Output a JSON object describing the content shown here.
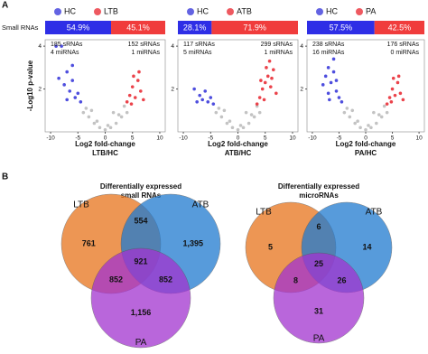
{
  "panels": {
    "a": "A",
    "b": "B"
  },
  "row_label": "Small RNAs",
  "chart_data": [
    {
      "type": "scatter",
      "ylabel": "-Log10 p-value",
      "xlabel": "Log2 fold-change",
      "subtitle": "LTB/HC",
      "xlim": [
        -11,
        11
      ],
      "xticks": [
        -10,
        -5,
        0,
        5,
        10
      ],
      "ylim": [
        0,
        4.3
      ],
      "yticks": [
        2,
        4
      ],
      "composition": {
        "values": [
          54.9,
          45.1
        ],
        "value_labels": [
          "54.9%",
          "45.1%"
        ]
      },
      "annotations": [
        "185 sRNAs",
        "4 miRNAs",
        "152 sRNAs",
        "1 miRNAs"
      ],
      "series": [
        {
          "color": "#b8b8b8",
          "x": [
            -4,
            -3,
            -2,
            -1,
            0,
            1,
            2,
            3,
            4,
            -3.5,
            -1.5,
            0.5,
            2.5,
            3.5,
            -2.5,
            1.5
          ],
          "y": [
            0.9,
            0.7,
            0.4,
            0.2,
            0.1,
            0.2,
            0.4,
            0.7,
            0.9,
            1.1,
            0.5,
            0.3,
            0.8,
            1.2,
            1.0,
            0.9
          ]
        },
        {
          "name": "HC",
          "color": "#2f2fd8",
          "x": [
            -9,
            -8,
            -7.5,
            -7,
            -6.5,
            -6,
            -5.5,
            -5,
            -4.5,
            -8.5,
            -7,
            -6
          ],
          "y": [
            4,
            4,
            2.2,
            2.8,
            1.9,
            2.4,
            1.6,
            1.8,
            1.4,
            2.5,
            1.5,
            3.1
          ]
        },
        {
          "name": "LTB",
          "color": "#e8222b",
          "x": [
            4,
            4.5,
            5,
            5.5,
            6,
            6.5,
            7,
            5.2,
            6.2,
            4.8
          ],
          "y": [
            1.4,
            1.7,
            2.1,
            1.6,
            2.4,
            1.9,
            1.5,
            2.6,
            2.8,
            1.3
          ]
        }
      ]
    },
    {
      "type": "scatter",
      "xlabel": "Log2 fold-change",
      "subtitle": "ATB/HC",
      "xlim": [
        -11,
        11
      ],
      "xticks": [
        -10,
        -5,
        0,
        5,
        10
      ],
      "ylim": [
        0,
        4.3
      ],
      "yticks": [
        2,
        4
      ],
      "composition": {
        "values": [
          28.1,
          71.9
        ],
        "value_labels": [
          "28.1%",
          "71.9%"
        ]
      },
      "annotations": [
        "117 sRNAs",
        "5 miRNAs",
        "299 sRNAs",
        "1 miRNAs"
      ],
      "series": [
        {
          "color": "#b8b8b8",
          "x": [
            -4,
            -3,
            -2,
            -1,
            0,
            1,
            2,
            3,
            4,
            -3.5,
            -1.5,
            0.5,
            2.5,
            3.5,
            -2.5,
            1.5
          ],
          "y": [
            0.9,
            0.7,
            0.4,
            0.2,
            0.1,
            0.2,
            0.4,
            0.7,
            0.9,
            1.1,
            0.5,
            0.3,
            0.8,
            1.2,
            1.0,
            0.9
          ]
        },
        {
          "name": "HC",
          "color": "#2f2fd8",
          "x": [
            -8,
            -7,
            -6.5,
            -6,
            -5.5,
            -5,
            -4.5,
            -7.5
          ],
          "y": [
            2.0,
            1.7,
            1.5,
            1.9,
            1.4,
            1.6,
            1.3,
            1.4
          ]
        },
        {
          "name": "ATB",
          "color": "#e8222b",
          "x": [
            3.5,
            4,
            4.5,
            5,
            5.5,
            6,
            6.5,
            7,
            4.2,
            5.2,
            6.2,
            4.8,
            5.8
          ],
          "y": [
            1.3,
            1.6,
            2.0,
            2.3,
            2.6,
            2.1,
            2.9,
            1.8,
            2.4,
            3.0,
            2.5,
            1.5,
            3.3
          ]
        }
      ]
    },
    {
      "type": "scatter",
      "xlabel": "Log2 fold-change",
      "subtitle": "PA/HC",
      "xlim": [
        -11,
        11
      ],
      "xticks": [
        -10,
        -5,
        0,
        5,
        10
      ],
      "ylim": [
        0,
        4.3
      ],
      "yticks": [
        2,
        4
      ],
      "composition": {
        "values": [
          57.5,
          42.5
        ],
        "value_labels": [
          "57.5%",
          "42.5%"
        ]
      },
      "annotations": [
        "238 sRNAs",
        "16 miRNAs",
        "176 sRNAs",
        "0 miRNAs"
      ],
      "series": [
        {
          "color": "#b8b8b8",
          "x": [
            -4,
            -3,
            -2,
            -1,
            0,
            1,
            2,
            3,
            4,
            -3.5,
            -1.5,
            0.5,
            2.5,
            3.5,
            -2.5,
            1.5
          ],
          "y": [
            0.9,
            0.7,
            0.4,
            0.2,
            0.1,
            0.2,
            0.4,
            0.7,
            0.9,
            1.1,
            0.5,
            0.3,
            0.8,
            1.2,
            1.0,
            0.9
          ]
        },
        {
          "name": "HC",
          "color": "#2f2fd8",
          "x": [
            -8,
            -7.5,
            -7,
            -6.5,
            -6,
            -5.5,
            -5,
            -4.5,
            -7,
            -6,
            -5.5,
            -6.8
          ],
          "y": [
            2.2,
            2.6,
            3.0,
            2.3,
            2.8,
            1.9,
            1.6,
            1.4,
            1.8,
            3.4,
            2.4,
            1.5
          ]
        },
        {
          "name": "PA",
          "color": "#e8222b",
          "x": [
            4,
            4.5,
            5,
            5.5,
            6,
            6.5,
            7,
            5.2,
            6.2,
            4.8
          ],
          "y": [
            1.3,
            1.6,
            2.0,
            1.7,
            2.3,
            1.8,
            1.5,
            2.5,
            2.6,
            1.4
          ]
        }
      ]
    },
    {
      "type": "venn",
      "title": [
        "Differentially expressed",
        "small RNAs"
      ],
      "sets": [
        {
          "name": "LTB",
          "color": "#e8731c"
        },
        {
          "name": "ATB",
          "color": "#1f7ad0"
        },
        {
          "name": "PA",
          "color": "#a233d0"
        }
      ],
      "values": [
        761,
        554,
        1395,
        852,
        921,
        852,
        1156
      ],
      "value_labels": [
        "761",
        "554",
        "1,395",
        "852",
        "921",
        "852",
        "1,156"
      ]
    },
    {
      "type": "venn",
      "title": [
        "Differentially expressed",
        "microRNAs"
      ],
      "sets": [
        {
          "name": "LTB",
          "color": "#e8731c"
        },
        {
          "name": "ATB",
          "color": "#1f7ad0"
        },
        {
          "name": "PA",
          "color": "#a233d0"
        }
      ],
      "values": [
        5,
        6,
        14,
        8,
        25,
        26,
        31
      ]
    }
  ]
}
